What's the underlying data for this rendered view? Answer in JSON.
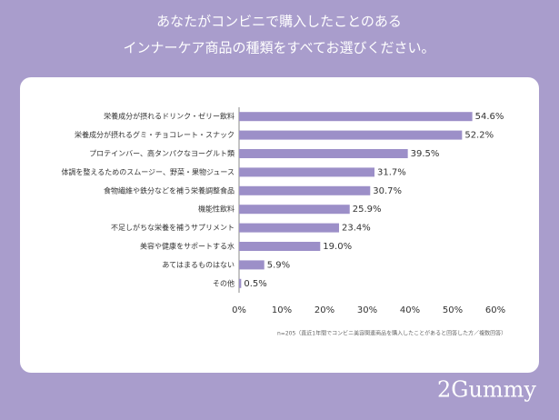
{
  "chart_data": {
    "type": "bar",
    "orientation": "horizontal",
    "title": [
      "あなたがコンビニで購入したことのある",
      "インナーケア商品の種類をすべてお選びください。"
    ],
    "categories": [
      "栄養成分が摂れるドリンク・ゼリー飲料",
      "栄養成分が摂れるグミ・チョコレート・スナック",
      "プロテインバー、高タンパクなヨーグルト類",
      "体調を整えるためのスムージー、野菜・果物ジュース",
      "食物繊維や鉄分などを補う栄養調整食品",
      "機能性飲料",
      "不足しがちな栄養を補うサプリメント",
      "美容や健康をサポートする水",
      "あてはまるものはない",
      "その他"
    ],
    "values": [
      54.6,
      52.2,
      39.5,
      31.7,
      30.7,
      25.9,
      23.4,
      19.0,
      5.9,
      0.5
    ],
    "value_labels": [
      "54.6%",
      "52.2%",
      "39.5%",
      "31.7%",
      "30.7%",
      "25.9%",
      "23.4%",
      "19.0%",
      "5.9%",
      "0.5%"
    ],
    "color": "#9c8fc8",
    "xlim": [
      0,
      60
    ],
    "xticks": [
      {
        "value": 0,
        "label": "0%"
      },
      {
        "value": 10,
        "label": "10%"
      },
      {
        "value": 20,
        "label": "20%"
      },
      {
        "value": 30,
        "label": "30%"
      },
      {
        "value": 40,
        "label": "40%"
      },
      {
        "value": 50,
        "label": "50%"
      },
      {
        "value": 60,
        "label": "60%"
      }
    ],
    "note": "n=205（直近1年間でコンビニ美容関連商品を購入したことがあると回答した方／複数回答）",
    "brand": "2Gummy"
  }
}
